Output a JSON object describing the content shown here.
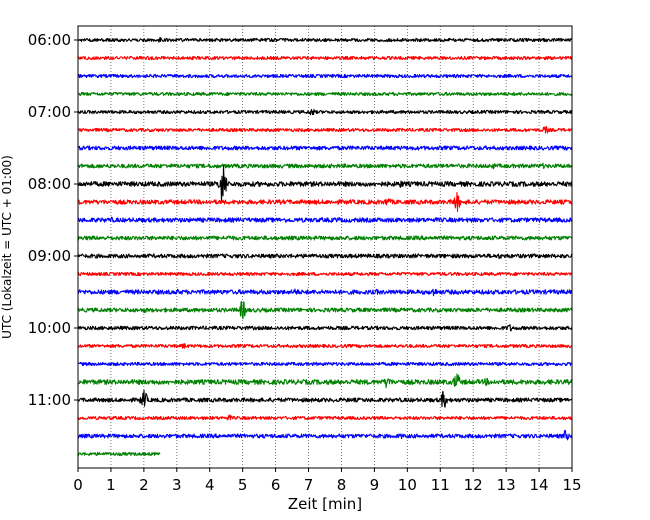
{
  "chart_data": {
    "type": "line",
    "subtype": "helicorder",
    "xlabel": "Zeit  [min]",
    "ylabel": "UTC (Lokalzeit = UTC + 01:00)",
    "xlim": [
      0,
      15
    ],
    "x_ticks": [
      0,
      1,
      2,
      3,
      4,
      5,
      6,
      7,
      8,
      9,
      10,
      11,
      12,
      13,
      14,
      15
    ],
    "y_tick_labels": [
      "06:00",
      "07:00",
      "08:00",
      "09:00",
      "10:00",
      "11:00"
    ],
    "grid": "vertical dotted",
    "trace_colors": [
      "#000000",
      "#ff0000",
      "#0000ff",
      "#008000"
    ],
    "traces": [
      {
        "start": "06:00",
        "end_min": 15,
        "noise": 1.6,
        "events": [
          {
            "t": 2.5,
            "amp": 3
          }
        ]
      },
      {
        "start": "06:15",
        "end_min": 15,
        "noise": 1.6,
        "events": []
      },
      {
        "start": "06:30",
        "end_min": 15,
        "noise": 1.6,
        "events": []
      },
      {
        "start": "06:45",
        "end_min": 15,
        "noise": 1.6,
        "events": []
      },
      {
        "start": "07:00",
        "end_min": 15,
        "noise": 1.6,
        "events": [
          {
            "t": 7.1,
            "amp": 4
          }
        ]
      },
      {
        "start": "07:15",
        "end_min": 15,
        "noise": 1.6,
        "events": [
          {
            "t": 14.2,
            "amp": 4
          }
        ]
      },
      {
        "start": "07:30",
        "end_min": 15,
        "noise": 2.0,
        "events": []
      },
      {
        "start": "07:45",
        "end_min": 15,
        "noise": 2.0,
        "events": [
          {
            "t": 12.6,
            "amp": 3
          },
          {
            "t": 14.1,
            "amp": 3
          }
        ]
      },
      {
        "start": "08:00",
        "end_min": 15,
        "noise": 2.4,
        "events": [
          {
            "t": 4.4,
            "amp": 22
          },
          {
            "t": 9.8,
            "amp": 4
          }
        ]
      },
      {
        "start": "08:15",
        "end_min": 15,
        "noise": 2.2,
        "events": [
          {
            "t": 9.4,
            "amp": 5
          },
          {
            "t": 11.5,
            "amp": 10
          }
        ]
      },
      {
        "start": "08:30",
        "end_min": 15,
        "noise": 2.2,
        "events": [
          {
            "t": 1.0,
            "amp": 3
          },
          {
            "t": 7.9,
            "amp": 3
          }
        ]
      },
      {
        "start": "08:45",
        "end_min": 15,
        "noise": 2.0,
        "events": [
          {
            "t": 4.6,
            "amp": 3
          }
        ]
      },
      {
        "start": "09:00",
        "end_min": 15,
        "noise": 2.0,
        "events": [
          {
            "t": 12.8,
            "amp": 3
          }
        ]
      },
      {
        "start": "09:15",
        "end_min": 15,
        "noise": 1.6,
        "events": []
      },
      {
        "start": "09:30",
        "end_min": 15,
        "noise": 2.2,
        "events": [
          {
            "t": 3.0,
            "amp": 3
          },
          {
            "t": 6.6,
            "amp": 4
          },
          {
            "t": 9.1,
            "amp": 3
          },
          {
            "t": 10.8,
            "amp": 5
          }
        ]
      },
      {
        "start": "09:45",
        "end_min": 15,
        "noise": 2.0,
        "events": [
          {
            "t": 2.0,
            "amp": 3
          },
          {
            "t": 5.0,
            "amp": 10
          }
        ]
      },
      {
        "start": "10:00",
        "end_min": 15,
        "noise": 1.8,
        "events": [
          {
            "t": 13.1,
            "amp": 4
          }
        ]
      },
      {
        "start": "10:15",
        "end_min": 15,
        "noise": 1.6,
        "events": [
          {
            "t": 3.2,
            "amp": 3
          }
        ]
      },
      {
        "start": "10:30",
        "end_min": 15,
        "noise": 1.6,
        "events": []
      },
      {
        "start": "10:45",
        "end_min": 15,
        "noise": 2.4,
        "events": [
          {
            "t": 9.4,
            "amp": 7
          },
          {
            "t": 11.5,
            "amp": 9
          },
          {
            "t": 12.4,
            "amp": 4
          }
        ]
      },
      {
        "start": "11:00",
        "end_min": 15,
        "noise": 2.0,
        "events": [
          {
            "t": 2.0,
            "amp": 10
          },
          {
            "t": 11.1,
            "amp": 9
          }
        ]
      },
      {
        "start": "11:15",
        "end_min": 15,
        "noise": 1.6,
        "events": [
          {
            "t": 4.6,
            "amp": 3
          }
        ]
      },
      {
        "start": "11:30",
        "end_min": 15,
        "noise": 2.0,
        "events": [
          {
            "t": 9.8,
            "amp": 3
          },
          {
            "t": 14.8,
            "amp": 6
          }
        ]
      },
      {
        "start": "11:45",
        "end_min": 2.5,
        "noise": 1.6,
        "events": []
      }
    ]
  }
}
